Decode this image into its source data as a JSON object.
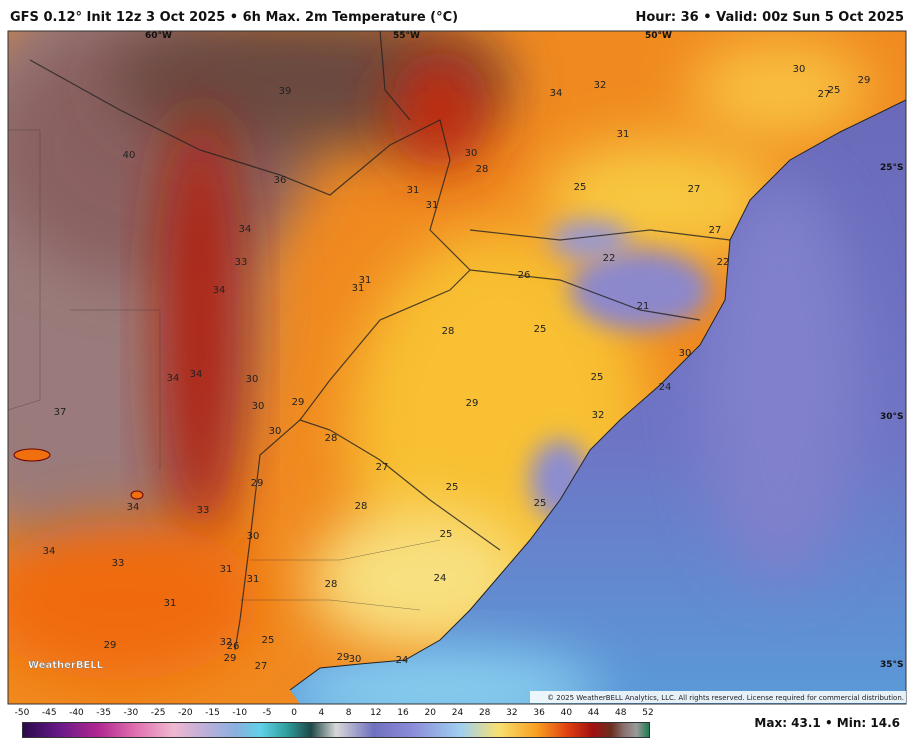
{
  "header": {
    "title_left": "GFS 0.12° Init 12z 3 Oct 2025 • 6h Max. 2m Temperature (°C)",
    "title_right": "Hour: 36 • Valid: 00z Sun 5 Oct 2025"
  },
  "map": {
    "lon_labels": [
      "60°W",
      "55°W",
      "50°W"
    ],
    "lat_labels": [
      "25°S",
      "30°S",
      "35°S"
    ],
    "labels": [
      "39",
      "34",
      "32",
      "30",
      "29",
      "27",
      "25",
      "40",
      "31",
      "30",
      "28",
      "36",
      "31",
      "31",
      "25",
      "27",
      "34",
      "33",
      "22",
      "26",
      "27",
      "22",
      "34",
      "31",
      "31",
      "21",
      "28",
      "25",
      "30",
      "34",
      "34",
      "30",
      "25",
      "24",
      "30",
      "29",
      "29",
      "32",
      "37",
      "30",
      "28",
      "27",
      "29",
      "25",
      "34",
      "33",
      "28",
      "25",
      "30",
      "25",
      "34",
      "33",
      "31",
      "31",
      "28",
      "24",
      "31",
      "29",
      "32",
      "26",
      "25",
      "29",
      "27",
      "29",
      "30",
      "24"
    ],
    "copyright": "© 2025 WeatherBELL Analytics, LLC. All rights reserved. License required for commercial distribution.",
    "logo": "WeatherBELL"
  },
  "colorbar": {
    "ticks": [
      -50,
      -45,
      -40,
      -35,
      -30,
      -25,
      -20,
      -15,
      -10,
      -5,
      0,
      4,
      8,
      12,
      16,
      20,
      24,
      28,
      32,
      36,
      40,
      44,
      48,
      52
    ]
  },
  "footer": {
    "stats": "Max: 43.1 • Min: 14.6"
  }
}
